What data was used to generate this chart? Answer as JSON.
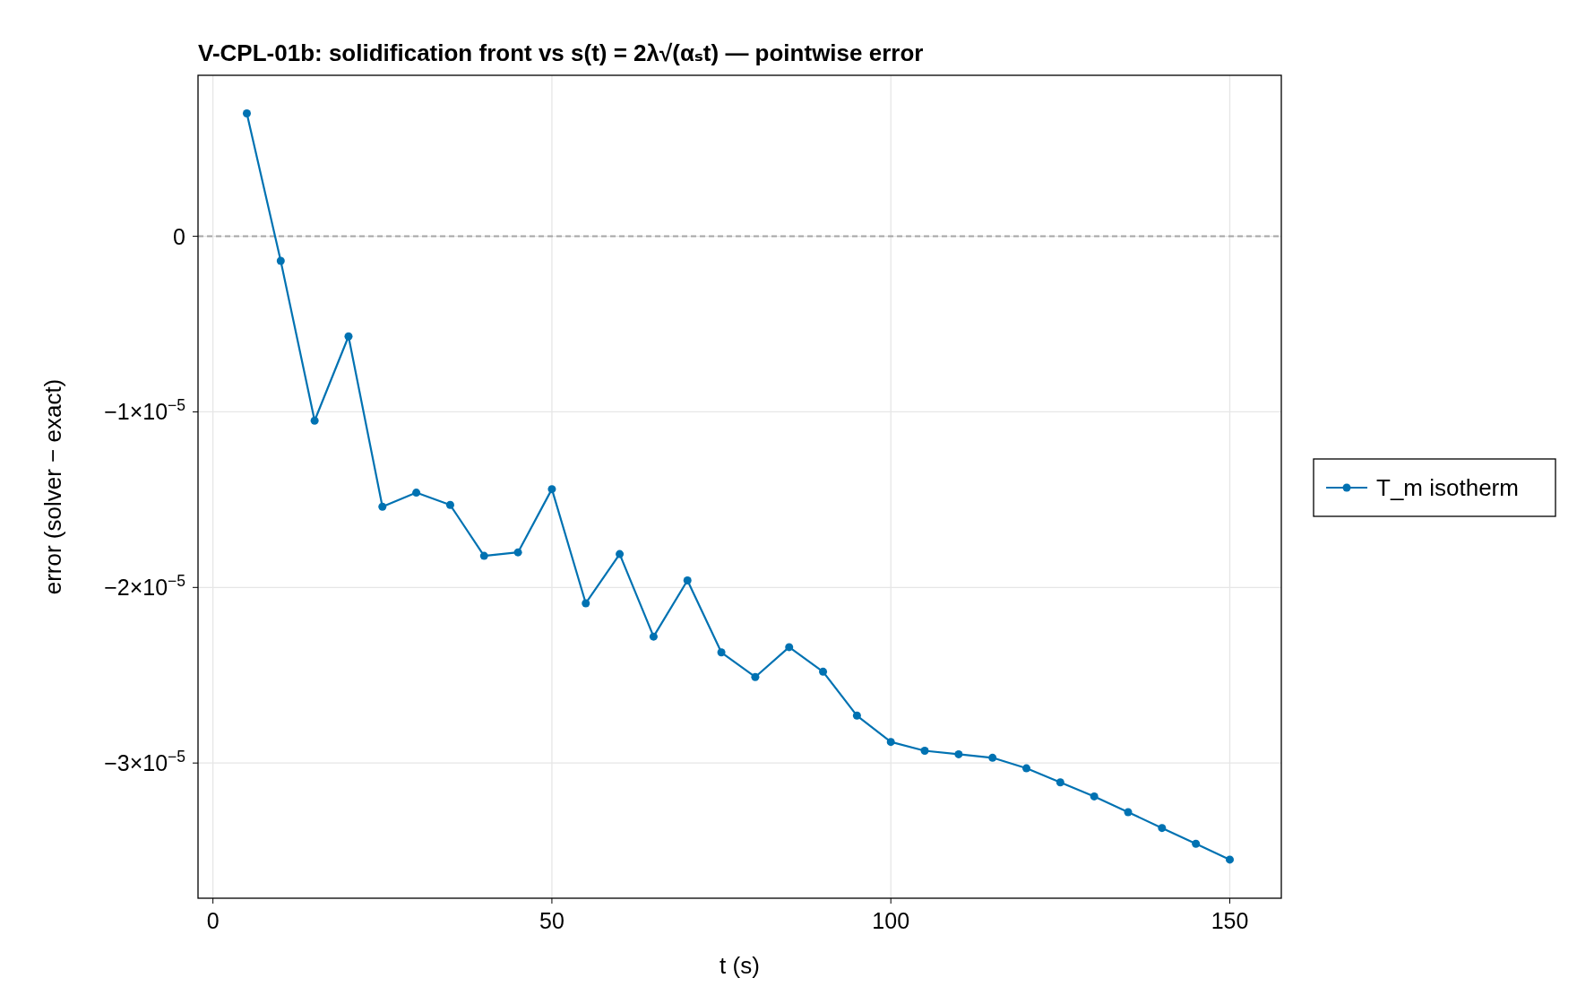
{
  "chart_data": {
    "type": "line",
    "title": "V-CPL-01b: solidification front vs s(t) = 2λ√(αₛt) — pointwise error",
    "xlabel": "t (s)",
    "ylabel": "error (solver − exact)",
    "x": [
      5,
      10,
      15,
      20,
      25,
      30,
      35,
      40,
      45,
      50,
      55,
      60,
      65,
      70,
      75,
      80,
      85,
      90,
      95,
      100,
      105,
      110,
      115,
      120,
      125,
      130,
      135,
      140,
      145,
      150
    ],
    "series": [
      {
        "name": "T_m isotherm",
        "color": "#0072b2",
        "values": [
          7e-06,
          -1.4e-06,
          -1.05e-05,
          -5.7e-06,
          -1.54e-05,
          -1.46e-05,
          -1.53e-05,
          -1.82e-05,
          -1.8e-05,
          -1.44e-05,
          -2.09e-05,
          -1.81e-05,
          -2.28e-05,
          -1.96e-05,
          -2.37e-05,
          -2.51e-05,
          -2.34e-05,
          -2.48e-05,
          -2.73e-05,
          -2.88e-05,
          -2.93e-05,
          -2.95e-05,
          -2.97e-05,
          -3.03e-05,
          -3.11e-05,
          -3.19e-05,
          -3.28e-05,
          -3.37e-05,
          -3.46e-05,
          -3.55e-05
        ]
      }
    ],
    "xlim": [
      -2.2,
      157.6
    ],
    "ylim": [
      -3.77e-05,
      9.17e-06
    ],
    "xticks": [
      0,
      50,
      100,
      150
    ],
    "yticks": [
      0,
      {
        "value": -1e-05,
        "label": "−1×10$^{−5}$"
      },
      {
        "value": -2e-05,
        "label": "−2×10$^{−5}$"
      },
      {
        "value": -3e-05,
        "label": "−3×10$^{−5}$"
      }
    ],
    "ref_lines": [
      {
        "axis": "y",
        "value": 0,
        "color": "#a6a6a6",
        "line_style": "dashed"
      }
    ],
    "grid": true,
    "legend": "right",
    "marker": "circle",
    "line_style": "solid"
  }
}
